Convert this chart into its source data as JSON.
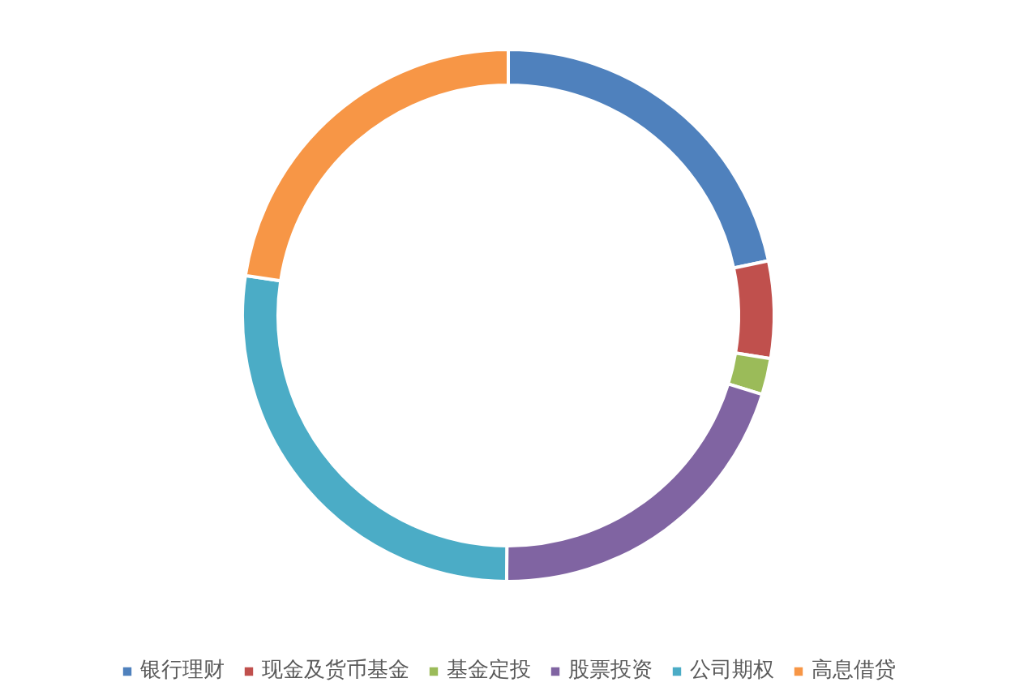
{
  "chart_data": {
    "type": "donut",
    "categories": [
      "银行理财",
      "现金及货币基金",
      "基金定投",
      "股票投资",
      "公司期权",
      "高息借贷"
    ],
    "values": [
      21.7,
      5.9,
      2.2,
      20.3,
      27.3,
      22.6
    ],
    "colors": [
      "#4f81bd",
      "#c0504d",
      "#9bbb59",
      "#8064a2",
      "#4bacc6",
      "#f79646"
    ],
    "legend": "bottom"
  }
}
